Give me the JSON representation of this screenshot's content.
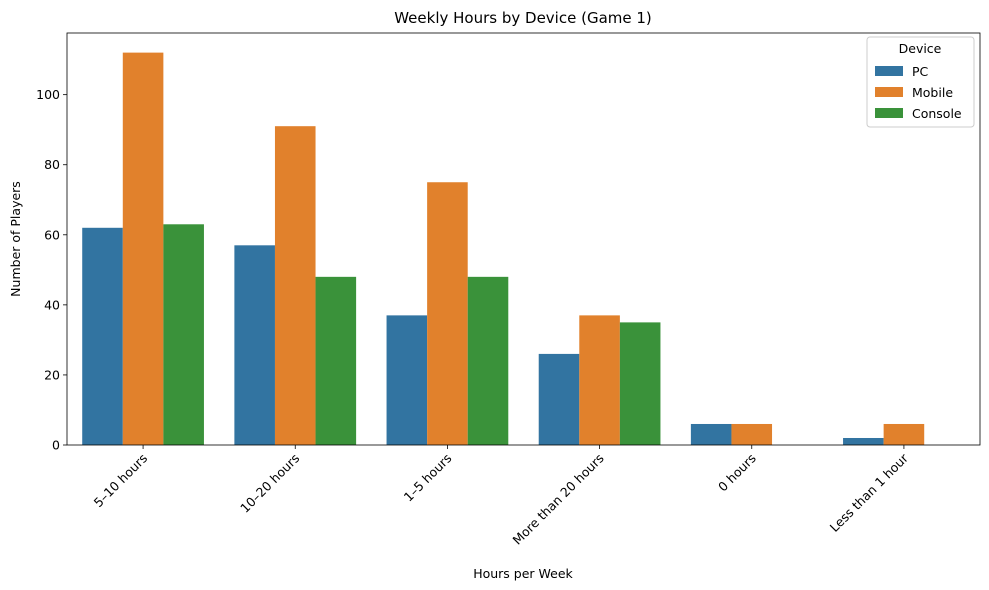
{
  "chart_data": {
    "type": "bar",
    "title": "Weekly Hours by Device (Game 1)",
    "xlabel": "Hours per Week",
    "ylabel": "Number of Players",
    "categories": [
      "5–10 hours",
      "10–20 hours",
      "1–5 hours",
      "More than 20 hours",
      "0 hours",
      "Less than 1 hour"
    ],
    "series": [
      {
        "name": "PC",
        "color": "#3274a1",
        "values": [
          62,
          57,
          37,
          26,
          6,
          2
        ]
      },
      {
        "name": "Mobile",
        "color": "#e1812c",
        "values": [
          112,
          91,
          75,
          37,
          6,
          6
        ]
      },
      {
        "name": "Console",
        "color": "#3a923a",
        "values": [
          63,
          48,
          48,
          35,
          0,
          0
        ]
      }
    ],
    "ylim": [
      0,
      117.6
    ],
    "yticks": [
      0,
      20,
      40,
      60,
      80,
      100
    ],
    "grid": false,
    "legend": {
      "title": "Device",
      "placement": "top-right"
    }
  }
}
